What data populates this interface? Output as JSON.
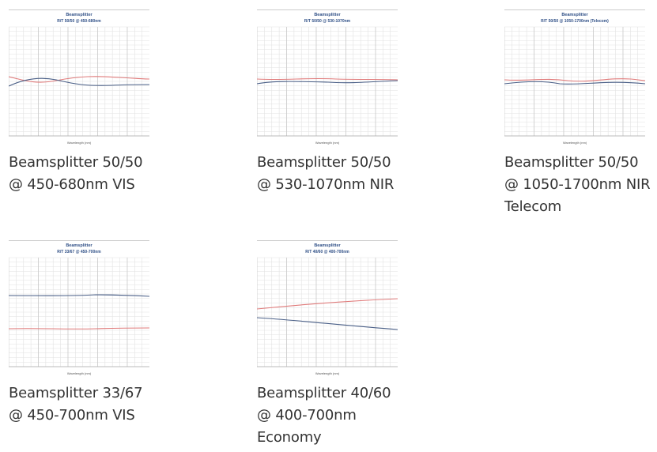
{
  "products": [
    {
      "thumb_title": "Beamsplitter",
      "thumb_subtitle": "R/T 50/50 @ 450-680nm",
      "x_label": "Wavelength (nm)",
      "caption": [
        "Beamsplitter 50/50",
        "@ 450-680nm VIS"
      ]
    },
    {
      "thumb_title": "Beamsplitter",
      "thumb_subtitle": "R/T 50/50 @ 530-1070nm",
      "x_label": "Wavelength (nm)",
      "caption": [
        "Beamsplitter 50/50",
        "@ 530-1070nm NIR"
      ]
    },
    {
      "thumb_title": "Beamsplitter",
      "thumb_subtitle": "R/T 50/50 @ 1050-1700nm (Telecom)",
      "x_label": "Wavelength (nm)",
      "caption": [
        "Beamsplitter 50/50",
        "@ 1050-1700nm NIR",
        "Telecom"
      ]
    },
    {
      "thumb_title": "Beamsplitter",
      "thumb_subtitle": "R/T 33/67 @ 450-700nm",
      "x_label": "Wavelength (nm)",
      "caption": [
        "Beamsplitter 33/67",
        "@ 450-700nm VIS"
      ]
    },
    {
      "thumb_title": "Beamsplitter",
      "thumb_subtitle": "R/T 40/60 @ 400-700nm",
      "x_label": "Wavelength (nm)",
      "caption": [
        "Beamsplitter 40/60",
        "@ 400-700nm",
        "Economy"
      ]
    }
  ]
}
